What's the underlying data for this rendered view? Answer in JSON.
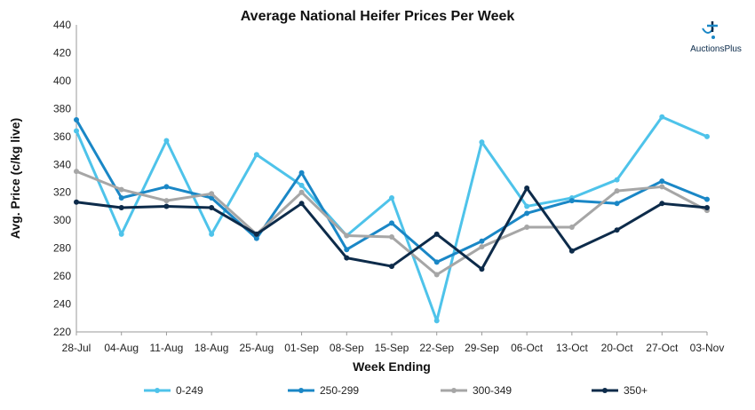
{
  "chart_data": {
    "type": "line",
    "title": "Average National Heifer Prices Per Week",
    "xlabel": "Week Ending",
    "ylabel": "Avg. Price (c/kg live)",
    "categories": [
      "28-Jul",
      "04-Aug",
      "11-Aug",
      "18-Aug",
      "25-Aug",
      "01-Sep",
      "08-Sep",
      "15-Sep",
      "22-Sep",
      "29-Sep",
      "06-Oct",
      "13-Oct",
      "20-Oct",
      "27-Oct",
      "03-Nov"
    ],
    "ylim": [
      220,
      440
    ],
    "yticks": [
      220,
      240,
      260,
      280,
      300,
      320,
      340,
      360,
      380,
      400,
      420,
      440
    ],
    "grid": false,
    "legend_position": "bottom",
    "series": [
      {
        "name": "0-249",
        "color": "#4ec3ea",
        "values": [
          364,
          290,
          357,
          290,
          347,
          325,
          289,
          316,
          228,
          356,
          310,
          316,
          329,
          374,
          360
        ]
      },
      {
        "name": "250-299",
        "color": "#1a87c6",
        "values": [
          372,
          316,
          324,
          316,
          287,
          334,
          279,
          298,
          270,
          285,
          305,
          314,
          312,
          328,
          315
        ]
      },
      {
        "name": "300-349",
        "color": "#a6a6a6",
        "values": [
          335,
          322,
          314,
          319,
          290,
          320,
          289,
          288,
          261,
          281,
          295,
          295,
          321,
          324,
          307
        ]
      },
      {
        "name": "350+",
        "color": "#0d2b4a",
        "values": [
          313,
          309,
          310,
          309,
          290,
          312,
          273,
          267,
          290,
          265,
          323,
          278,
          293,
          312,
          309
        ]
      }
    ]
  },
  "logo": {
    "text": "AuctionsPlus",
    "icon": "auctionsplus-logo-icon"
  }
}
